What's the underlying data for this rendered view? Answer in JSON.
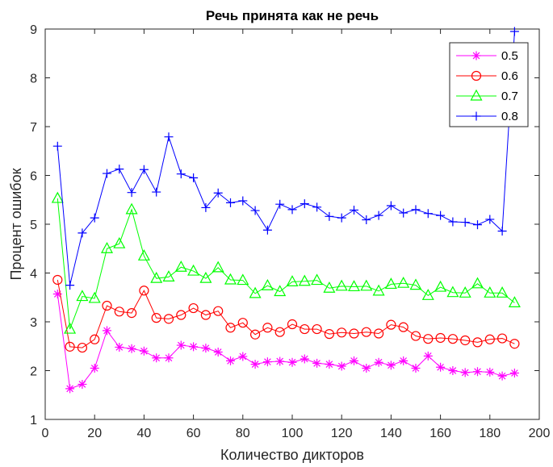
{
  "chart_data": {
    "type": "line",
    "title": "Речь принята как не речь",
    "xlabel": "Количество дикторов",
    "ylabel": "Процент ошибок",
    "xlim": [
      0,
      200
    ],
    "ylim": [
      1,
      9
    ],
    "xticks": [
      0,
      20,
      40,
      60,
      80,
      100,
      120,
      140,
      160,
      180,
      200
    ],
    "yticks": [
      1,
      2,
      3,
      4,
      5,
      6,
      7,
      8,
      9
    ],
    "grid": false,
    "legend_position": "top-right",
    "x": [
      5,
      10,
      15,
      20,
      25,
      30,
      35,
      40,
      45,
      50,
      55,
      60,
      65,
      70,
      75,
      80,
      85,
      90,
      95,
      100,
      105,
      110,
      115,
      120,
      125,
      130,
      135,
      140,
      145,
      150,
      155,
      160,
      165,
      170,
      175,
      180,
      185,
      190
    ],
    "series": [
      {
        "name": "0.5",
        "color": "#ff00ff",
        "marker": "asterisk",
        "values": [
          3.57,
          1.63,
          1.72,
          2.05,
          2.82,
          2.48,
          2.45,
          2.4,
          2.26,
          2.26,
          2.52,
          2.49,
          2.46,
          2.38,
          2.2,
          2.29,
          2.13,
          2.18,
          2.19,
          2.17,
          2.24,
          2.15,
          2.13,
          2.09,
          2.2,
          2.05,
          2.17,
          2.11,
          2.2,
          2.05,
          2.3,
          2.07,
          2.0,
          1.96,
          1.98,
          1.97,
          1.89,
          1.95
        ]
      },
      {
        "name": "0.6",
        "color": "#ff0000",
        "marker": "circle",
        "values": [
          3.86,
          2.49,
          2.47,
          2.64,
          3.33,
          3.21,
          3.18,
          3.64,
          3.08,
          3.06,
          3.14,
          3.28,
          3.14,
          3.22,
          2.88,
          2.98,
          2.74,
          2.88,
          2.79,
          2.95,
          2.85,
          2.85,
          2.75,
          2.78,
          2.76,
          2.79,
          2.76,
          2.94,
          2.89,
          2.71,
          2.65,
          2.67,
          2.65,
          2.62,
          2.58,
          2.64,
          2.66,
          2.55
        ]
      },
      {
        "name": "0.7",
        "color": "#00ff00",
        "marker": "triangle",
        "values": [
          5.53,
          2.85,
          3.52,
          3.48,
          4.5,
          4.6,
          5.3,
          4.35,
          3.89,
          3.92,
          4.12,
          4.04,
          3.89,
          4.11,
          3.86,
          3.85,
          3.58,
          3.74,
          3.62,
          3.82,
          3.83,
          3.85,
          3.69,
          3.73,
          3.72,
          3.73,
          3.63,
          3.77,
          3.79,
          3.75,
          3.54,
          3.71,
          3.6,
          3.59,
          3.78,
          3.59,
          3.59,
          3.39
        ]
      },
      {
        "name": "0.8",
        "color": "#0000ff",
        "marker": "plus",
        "values": [
          6.6,
          3.75,
          4.82,
          5.13,
          6.04,
          6.13,
          5.65,
          6.12,
          5.66,
          6.79,
          6.03,
          5.95,
          5.34,
          5.64,
          5.44,
          5.48,
          5.28,
          4.88,
          5.41,
          5.3,
          5.42,
          5.35,
          5.16,
          5.13,
          5.29,
          5.09,
          5.18,
          5.38,
          5.23,
          5.3,
          5.22,
          5.18,
          5.05,
          5.04,
          4.99,
          5.1,
          4.86,
          8.95
        ]
      }
    ]
  }
}
